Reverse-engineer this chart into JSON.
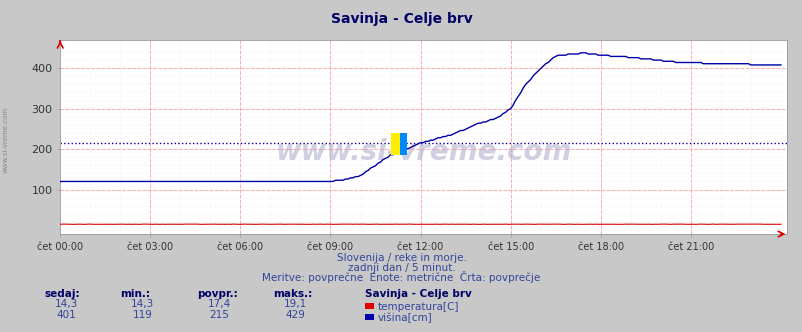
{
  "title": "Savinja - Celje brv",
  "bg_color": "#c8c8c8",
  "plot_bg_color": "#ffffff",
  "grid_color": "#ffaaaa",
  "minor_grid_color": "#ffdddd",
  "x_ticks_hours": [
    0,
    3,
    6,
    9,
    12,
    15,
    18,
    21
  ],
  "x_tick_labels": [
    "čet 00:00",
    "čet 03:00",
    "čet 06:00",
    "čet 09:00",
    "čet 12:00",
    "čet 15:00",
    "čet 18:00",
    "čet 21:00"
  ],
  "y_ticks": [
    100,
    200,
    300,
    400
  ],
  "ylim": [
    -10,
    470
  ],
  "xlim_hours": [
    0,
    24.2
  ],
  "temp_color": "#dd0000",
  "height_color": "#0000aa",
  "avg_line_color": "#0000aa",
  "avg_value": 215,
  "subtitle1": "Slovenija / reke in morje.",
  "subtitle2": "zadnji dan / 5 minut.",
  "subtitle3": "Meritve: povprečne  Enote: metrične  Črta: povprečje",
  "legend_title": "Savinja - Celje brv",
  "legend_items": [
    {
      "label": "temperatura[C]",
      "color": "#dd0000"
    },
    {
      "label": "višina[cm]",
      "color": "#0000aa"
    }
  ],
  "table_headers": [
    "sedaj:",
    "min.:",
    "povpr.:",
    "maks.:"
  ],
  "table_rows": [
    [
      "14,3",
      "14,3",
      "17,4",
      "19,1"
    ],
    [
      "401",
      "119",
      "215",
      "429"
    ]
  ],
  "watermark": "www.si-vreme.com",
  "side_label": "www.si-vreme.com"
}
